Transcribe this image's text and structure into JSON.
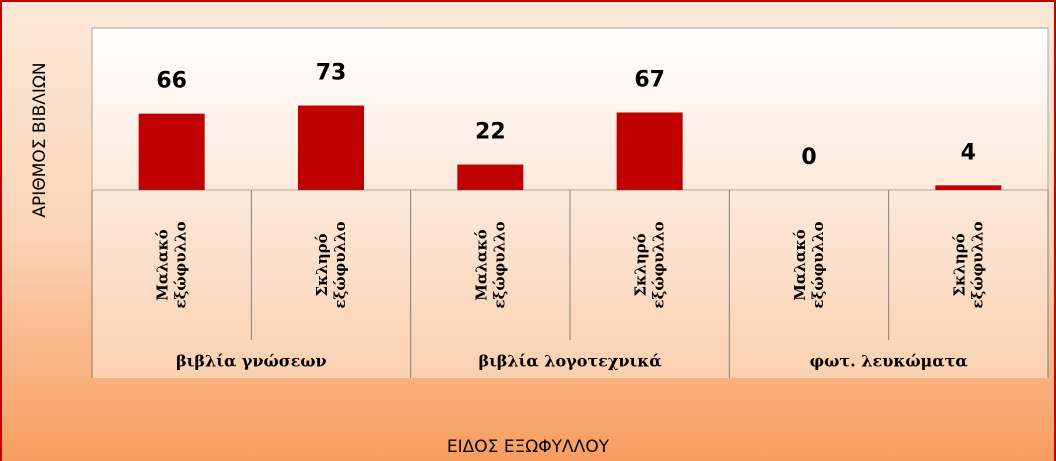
{
  "chart_data": {
    "type": "bar",
    "y_axis_label": "ΑΡΙΘΜΟΣ ΒΙΒΛΙΩΝ",
    "x_axis_label": "ΕΙΔΟΣ ΕΞΩΦΥΛΛΟΥ",
    "categories": [
      [
        "Μαλακό",
        "εξώφυλλο"
      ],
      [
        "Σκληρό",
        "εξώφυλλο"
      ],
      [
        "Μαλακό",
        "εξώφυλλο"
      ],
      [
        "Σκληρό",
        "εξώφυλλο"
      ],
      [
        "Μαλακό",
        "εξώφυλλο"
      ],
      [
        "Σκληρό",
        "εξώφυλλο"
      ]
    ],
    "groups": [
      "βιβλία γνώσεων",
      "βιβλία λογοτεχνικά",
      "φωτ. λευκώματα"
    ],
    "values": [
      66,
      73,
      22,
      67,
      0,
      4
    ],
    "color": "#c00000",
    "ylim": [
      0,
      140
    ]
  }
}
